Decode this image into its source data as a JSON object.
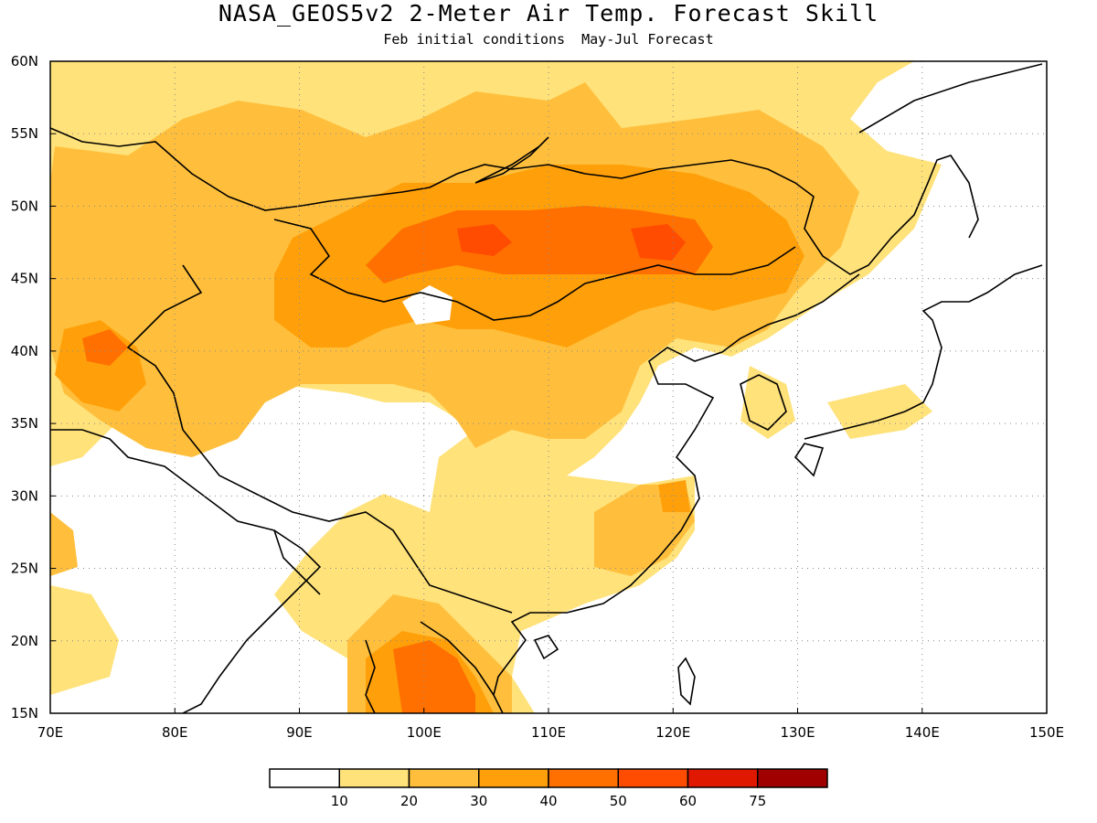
{
  "title": "NASA_GEOS5v2 2-Meter Air Temp. Forecast Skill",
  "subtitle": "Feb initial conditions  May-Jul Forecast",
  "map": {
    "lon_range": [
      70,
      150
    ],
    "lat_range": [
      15,
      60
    ],
    "lon_ticks": [
      "70E",
      "80E",
      "90E",
      "100E",
      "110E",
      "120E",
      "130E",
      "140E",
      "150E"
    ],
    "lat_ticks": [
      "15N",
      "20N",
      "25N",
      "30N",
      "35N",
      "40N",
      "45N",
      "50N",
      "55N",
      "60N"
    ],
    "grid": "dotted"
  },
  "colorbar": {
    "levels": [
      "10",
      "20",
      "30",
      "40",
      "50",
      "60",
      "75"
    ],
    "colors": [
      "#ffffff",
      "#ffe27a",
      "#ffbf3c",
      "#ffa00a",
      "#ff7000",
      "#ff4c00",
      "#e01800",
      "#a00000"
    ]
  }
}
